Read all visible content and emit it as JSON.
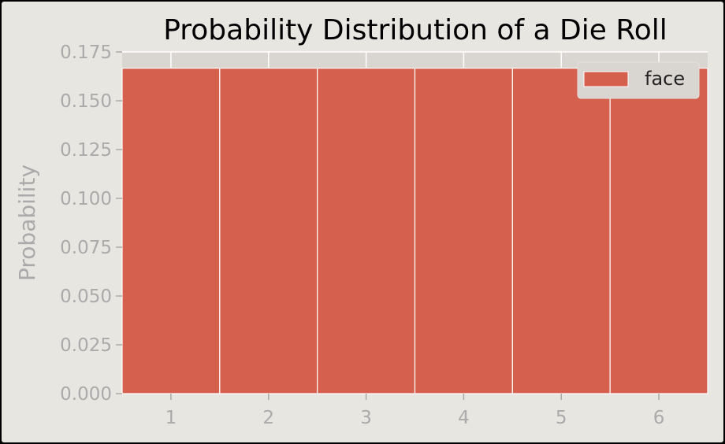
{
  "chart_data": {
    "type": "bar",
    "title": "Probability Distribution of a Die Roll",
    "xlabel": "",
    "ylabel": "Probability",
    "categories": [
      "1",
      "2",
      "3",
      "4",
      "5",
      "6"
    ],
    "series": [
      {
        "name": "face",
        "values": [
          0.1667,
          0.1667,
          0.1667,
          0.1667,
          0.1667,
          0.1667
        ]
      }
    ],
    "xlim": [
      0.5,
      6.5
    ],
    "ylim": [
      0,
      0.175
    ],
    "yticks": [
      "0.000",
      "0.025",
      "0.050",
      "0.075",
      "0.100",
      "0.125",
      "0.150",
      "0.175"
    ],
    "grid": true,
    "legend_position": "top-right",
    "colors": {
      "bar": "#d5604d",
      "bar_edge": "#ffffff",
      "axes_background": "#d9d5d0",
      "figure_background": "#e8e6e1",
      "grid": "#ffffff",
      "tick_label": "#aaaaaa",
      "title": "#000000"
    }
  }
}
